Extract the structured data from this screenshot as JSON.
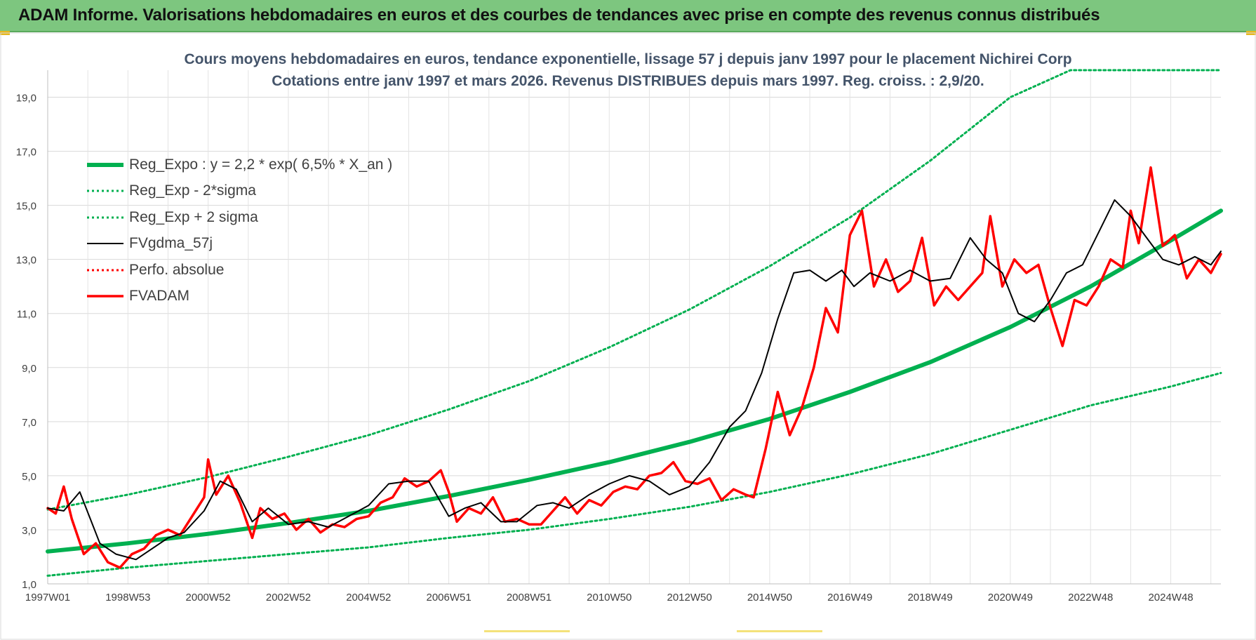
{
  "header": {
    "title": "ADAM Informe. Valorisations hebdomadaires en euros et des courbes de tendances avec prise en compte des revenus connus distribués"
  },
  "colors": {
    "header_bg": "#7dc67f",
    "regression": "#00b050",
    "smoothed": "#000000",
    "price": "#ff0000",
    "title_text": "#44546a"
  },
  "chart_data": {
    "type": "line",
    "title": "Cours moyens hebdomadaires en euros, tendance exponentielle, lissage 57 j depuis janv 1997 pour le placement Nichirei Corp",
    "subtitle": "Cotations entre janv 1997 et mars 2026. Revenus DISTRIBUES depuis mars 1997.  Reg. croiss. : 2,9/20.",
    "xlabel": "",
    "ylabel": "",
    "ylim": [
      1,
      20
    ],
    "xlim": [
      1997.0,
      2026.25
    ],
    "yticks": [
      "1,0",
      "3,0",
      "5,0",
      "7,0",
      "9,0",
      "11,0",
      "13,0",
      "15,0",
      "17,0",
      "19,0"
    ],
    "xtick_labels": [
      "1997W01",
      "1998W53",
      "2000W52",
      "2002W52",
      "2004W52",
      "2006W51",
      "2008W51",
      "2010W50",
      "2012W50",
      "2014W50",
      "2016W49",
      "2018W49",
      "2020W49",
      "2022W48",
      "2024W48"
    ],
    "xtick_positions": [
      1997.0,
      1999.0,
      2001.0,
      2003.0,
      2005.0,
      2007.0,
      2009.0,
      2011.0,
      2013.0,
      2015.0,
      2017.0,
      2019.0,
      2021.0,
      2023.0,
      2025.0
    ],
    "grid": true,
    "legend_position": "top-left",
    "series": [
      {
        "name": "Reg_Expo : y = 2,2 * exp( 6,5% *  X_an )",
        "style": "solid-thick",
        "color": "#00b050",
        "x": [
          1997,
          1999,
          2001,
          2003,
          2005,
          2007,
          2009,
          2011,
          2013,
          2015,
          2017,
          2019,
          2021,
          2023,
          2025,
          2026.25
        ],
        "values": [
          2.2,
          2.5,
          2.85,
          3.25,
          3.7,
          4.25,
          4.85,
          5.5,
          6.25,
          7.1,
          8.1,
          9.2,
          10.5,
          12.0,
          13.7,
          14.8
        ]
      },
      {
        "name": "Reg_Exp - 2*sigma",
        "style": "dotted",
        "color": "#00b050",
        "x": [
          1997,
          1999,
          2001,
          2003,
          2005,
          2007,
          2009,
          2011,
          2013,
          2015,
          2017,
          2019,
          2021,
          2023,
          2025,
          2026.25
        ],
        "values": [
          1.3,
          1.6,
          1.85,
          2.1,
          2.35,
          2.7,
          3.0,
          3.4,
          3.85,
          4.4,
          5.05,
          5.8,
          6.7,
          7.6,
          8.3,
          8.8
        ]
      },
      {
        "name": "Reg_Exp + 2 sigma",
        "style": "dotted",
        "color": "#00b050",
        "x": [
          1997,
          1999,
          2001,
          2003,
          2005,
          2007,
          2009,
          2011,
          2013,
          2015,
          2017,
          2019,
          2021,
          2022.5,
          2023,
          2025,
          2026.25
        ],
        "values": [
          3.75,
          4.3,
          4.95,
          5.7,
          6.5,
          7.45,
          8.5,
          9.75,
          11.15,
          12.75,
          14.55,
          16.65,
          19.0,
          20.0,
          20.0,
          20.0,
          20.0
        ]
      },
      {
        "name": "FVgdma_57j",
        "style": "solid-thin",
        "color": "#000000",
        "x": [
          1997.0,
          1997.4,
          1997.8,
          1998.3,
          1998.7,
          1999.2,
          1999.6,
          2000.0,
          2000.4,
          2000.9,
          2001.3,
          2001.7,
          2002.1,
          2002.5,
          2003.0,
          2003.5,
          2004.0,
          2004.5,
          2005.0,
          2005.5,
          2006.0,
          2006.5,
          2007.0,
          2007.4,
          2007.8,
          2008.3,
          2008.7,
          2009.2,
          2009.6,
          2010.0,
          2010.5,
          2011.0,
          2011.5,
          2012.0,
          2012.5,
          2013.0,
          2013.5,
          2014.0,
          2014.4,
          2014.8,
          2015.2,
          2015.6,
          2016.0,
          2016.4,
          2016.8,
          2017.1,
          2017.5,
          2018.0,
          2018.5,
          2019.0,
          2019.5,
          2020.0,
          2020.4,
          2020.8,
          2021.2,
          2021.6,
          2022.0,
          2022.4,
          2022.8,
          2023.2,
          2023.6,
          2024.0,
          2024.4,
          2024.8,
          2025.2,
          2025.6,
          2026.0,
          2026.25
        ],
        "values": [
          3.8,
          3.7,
          4.4,
          2.5,
          2.1,
          1.9,
          2.3,
          2.7,
          2.9,
          3.7,
          4.8,
          4.5,
          3.3,
          3.8,
          3.2,
          3.3,
          3.1,
          3.5,
          3.9,
          4.7,
          4.8,
          4.8,
          3.5,
          3.8,
          4.0,
          3.3,
          3.3,
          3.9,
          4.0,
          3.8,
          4.3,
          4.7,
          5.0,
          4.8,
          4.3,
          4.6,
          5.5,
          6.8,
          7.4,
          8.8,
          10.8,
          12.5,
          12.6,
          12.2,
          12.6,
          12.0,
          12.5,
          12.2,
          12.6,
          12.2,
          12.3,
          13.8,
          13.0,
          12.5,
          11.0,
          10.7,
          11.5,
          12.5,
          12.8,
          14.0,
          15.2,
          14.6,
          13.8,
          13.0,
          12.8,
          13.1,
          12.8,
          13.3
        ]
      },
      {
        "name": "Perfo. absolue",
        "style": "dotted",
        "color": "#ff0000",
        "x": [],
        "values": []
      },
      {
        "name": "FVADAM",
        "style": "solid-medium",
        "color": "#ff0000",
        "x": [
          1997.0,
          1997.2,
          1997.4,
          1997.6,
          1997.9,
          1998.2,
          1998.5,
          1998.8,
          1999.1,
          1999.4,
          1999.7,
          2000.0,
          2000.3,
          2000.6,
          2000.9,
          2001.0,
          2001.2,
          2001.5,
          2001.8,
          2002.1,
          2002.3,
          2002.6,
          2002.9,
          2003.2,
          2003.5,
          2003.8,
          2004.1,
          2004.4,
          2004.7,
          2005.0,
          2005.3,
          2005.6,
          2005.9,
          2006.2,
          2006.5,
          2006.8,
          2007.0,
          2007.2,
          2007.5,
          2007.8,
          2008.1,
          2008.4,
          2008.7,
          2009.0,
          2009.3,
          2009.6,
          2009.9,
          2010.2,
          2010.5,
          2010.8,
          2011.1,
          2011.4,
          2011.7,
          2012.0,
          2012.3,
          2012.6,
          2012.9,
          2013.2,
          2013.5,
          2013.8,
          2014.1,
          2014.4,
          2014.6,
          2014.9,
          2015.2,
          2015.5,
          2015.8,
          2016.1,
          2016.4,
          2016.7,
          2017.0,
          2017.3,
          2017.6,
          2017.9,
          2018.2,
          2018.5,
          2018.8,
          2019.1,
          2019.4,
          2019.7,
          2020.0,
          2020.3,
          2020.5,
          2020.8,
          2021.1,
          2021.4,
          2021.7,
          2022.0,
          2022.3,
          2022.6,
          2022.9,
          2023.2,
          2023.5,
          2023.8,
          2024.0,
          2024.2,
          2024.5,
          2024.8,
          2025.1,
          2025.4,
          2025.7,
          2026.0,
          2026.25
        ],
        "values": [
          3.8,
          3.6,
          4.6,
          3.4,
          2.1,
          2.5,
          1.8,
          1.6,
          2.1,
          2.3,
          2.8,
          3.0,
          2.8,
          3.5,
          4.2,
          5.6,
          4.3,
          5.0,
          4.0,
          2.7,
          3.8,
          3.4,
          3.6,
          3.0,
          3.4,
          2.9,
          3.2,
          3.1,
          3.4,
          3.5,
          4.0,
          4.2,
          4.9,
          4.6,
          4.8,
          5.2,
          4.4,
          3.3,
          3.8,
          3.6,
          4.2,
          3.3,
          3.4,
          3.2,
          3.2,
          3.7,
          4.2,
          3.6,
          4.1,
          3.9,
          4.4,
          4.6,
          4.5,
          5.0,
          5.1,
          5.5,
          4.8,
          4.7,
          4.9,
          4.1,
          4.5,
          4.3,
          4.2,
          6.0,
          8.1,
          6.5,
          7.5,
          9.0,
          11.2,
          10.3,
          13.9,
          14.8,
          12.0,
          13.0,
          11.8,
          12.2,
          13.8,
          11.3,
          12.0,
          11.5,
          12.0,
          12.5,
          14.6,
          12.0,
          13.0,
          12.5,
          12.8,
          11.2,
          9.8,
          11.5,
          11.3,
          12.0,
          13.0,
          12.7,
          14.8,
          13.6,
          16.4,
          13.5,
          13.9,
          12.3,
          13.0,
          12.5,
          13.2
        ]
      }
    ]
  }
}
